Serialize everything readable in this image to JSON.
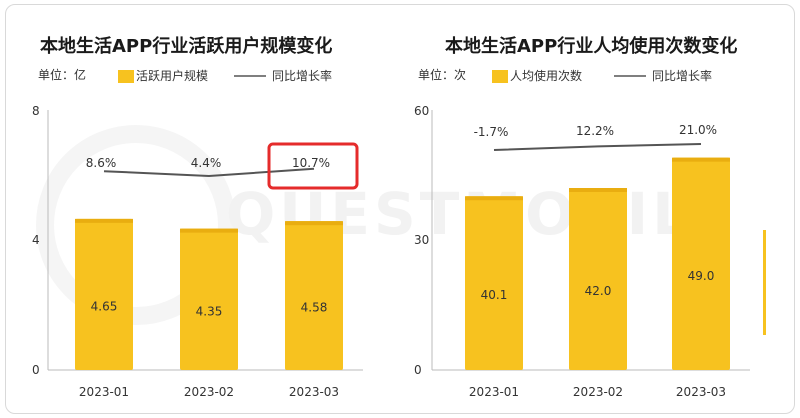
{
  "charts": [
    {
      "title": "本地生活APP行业活跃用户规模变化",
      "unit_label": "单位：亿",
      "legend_bar": "活跃用户规模",
      "legend_line": "同比增长率",
      "ytick_labels": [
        "8",
        "4",
        "0"
      ],
      "highlight_color": "#e52b2b"
    },
    {
      "title": "本地生活APP行业人均使用次数变化",
      "unit_label": "单位：次",
      "legend_bar": "人均使用次数",
      "legend_line": "同比增长率",
      "ytick_labels": [
        "60",
        "30",
        "0"
      ]
    }
  ],
  "colors": {
    "bar": "#f7c21f",
    "bar_dark": "#e9ad10",
    "line": "#555555",
    "axis": "#bbbbbb"
  },
  "chart_data": [
    {
      "type": "bar",
      "title": "本地生活APP行业活跃用户规模变化",
      "categories": [
        "2023-01",
        "2023-02",
        "2023-03"
      ],
      "ylim": [
        0,
        8
      ],
      "series": [
        {
          "name": "活跃用户规模",
          "type": "bar",
          "values": [
            4.65,
            4.35,
            4.58
          ],
          "labels": [
            "4.65",
            "4.35",
            "4.58"
          ]
        },
        {
          "name": "同比增长率",
          "type": "line",
          "values": [
            8.6,
            4.4,
            10.7
          ],
          "labels": [
            "8.6%",
            "4.4%",
            "10.7%"
          ]
        }
      ],
      "highlight": "10.7%"
    },
    {
      "type": "bar",
      "title": "本地生活APP行业人均使用次数变化",
      "categories": [
        "2023-01",
        "2023-02",
        "2023-03"
      ],
      "ylim": [
        0,
        60
      ],
      "series": [
        {
          "name": "人均使用次数",
          "type": "bar",
          "values": [
            40.1,
            42.0,
            49.0
          ],
          "labels": [
            "40.1",
            "42.0",
            "49.0"
          ]
        },
        {
          "name": "同比增长率",
          "type": "line",
          "values": [
            -1.7,
            12.2,
            21.0
          ],
          "labels": [
            "-1.7%",
            "12.2%",
            "21.0%"
          ]
        }
      ]
    }
  ]
}
